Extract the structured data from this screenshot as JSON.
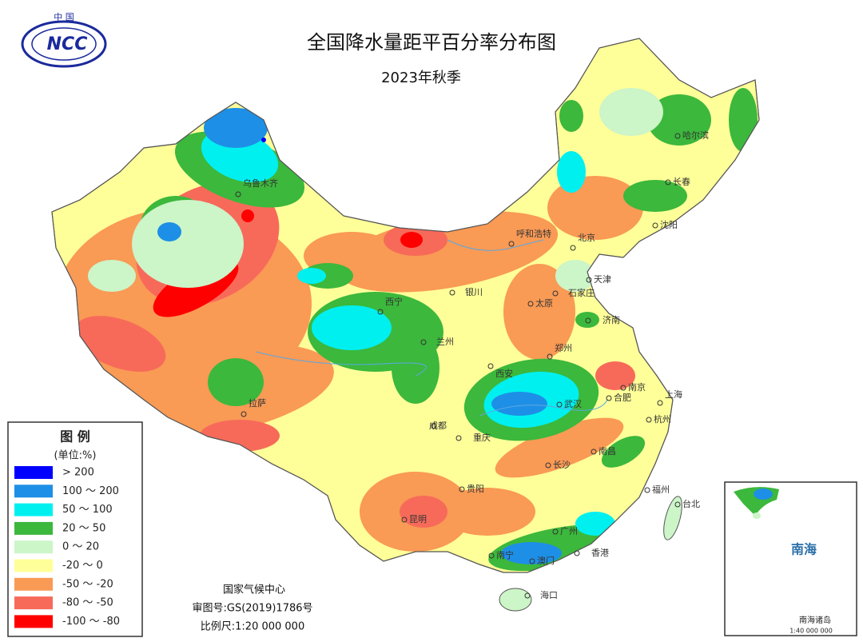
{
  "header": {
    "logo_top": "中 国",
    "logo": "NCC",
    "title": "全国降水量距平百分率分布图",
    "subtitle": "2023年秋季"
  },
  "legend": {
    "title": "图 例",
    "unit": "(单位:%)",
    "items": [
      {
        "label": "> 200",
        "color": "#0000ff"
      },
      {
        "label": "100 ～ 200",
        "color": "#1e8fe6"
      },
      {
        "label": "50 ～ 100",
        "color": "#00f0f0"
      },
      {
        "label": "20 ～ 50",
        "color": "#3cb83c"
      },
      {
        "label": "0 ～ 20",
        "color": "#ccf5c8"
      },
      {
        "label": "-20 ～ 0",
        "color": "#ffff99"
      },
      {
        "label": "-50 ～ -20",
        "color": "#f99a55"
      },
      {
        "label": "-80 ～ -50",
        "color": "#f76a5a"
      },
      {
        "label": "-100 ～ -80",
        "color": "#ff0000"
      }
    ]
  },
  "cities": [
    "乌鲁木齐",
    "拉萨",
    "西宁",
    "兰州",
    "银川",
    "呼和浩特",
    "北京",
    "天津",
    "石家庄",
    "太原",
    "济南",
    "西安",
    "郑州",
    "成都",
    "重庆",
    "南京",
    "合肥",
    "上海",
    "杭州",
    "武汉",
    "长沙",
    "南昌",
    "贵阳",
    "昆明",
    "福州",
    "台北",
    "广州",
    "南宁",
    "澳门",
    "香港",
    "海口",
    "哈尔滨",
    "长春",
    "沈阳"
  ],
  "inset": {
    "title": "南海",
    "caption": "南海诸岛",
    "scale": "1:40 000 000"
  },
  "footer": {
    "agency": "国家气候中心",
    "approval": "审图号:GS(2019)1786号",
    "scale": "比例尺:1:20 000 000"
  }
}
